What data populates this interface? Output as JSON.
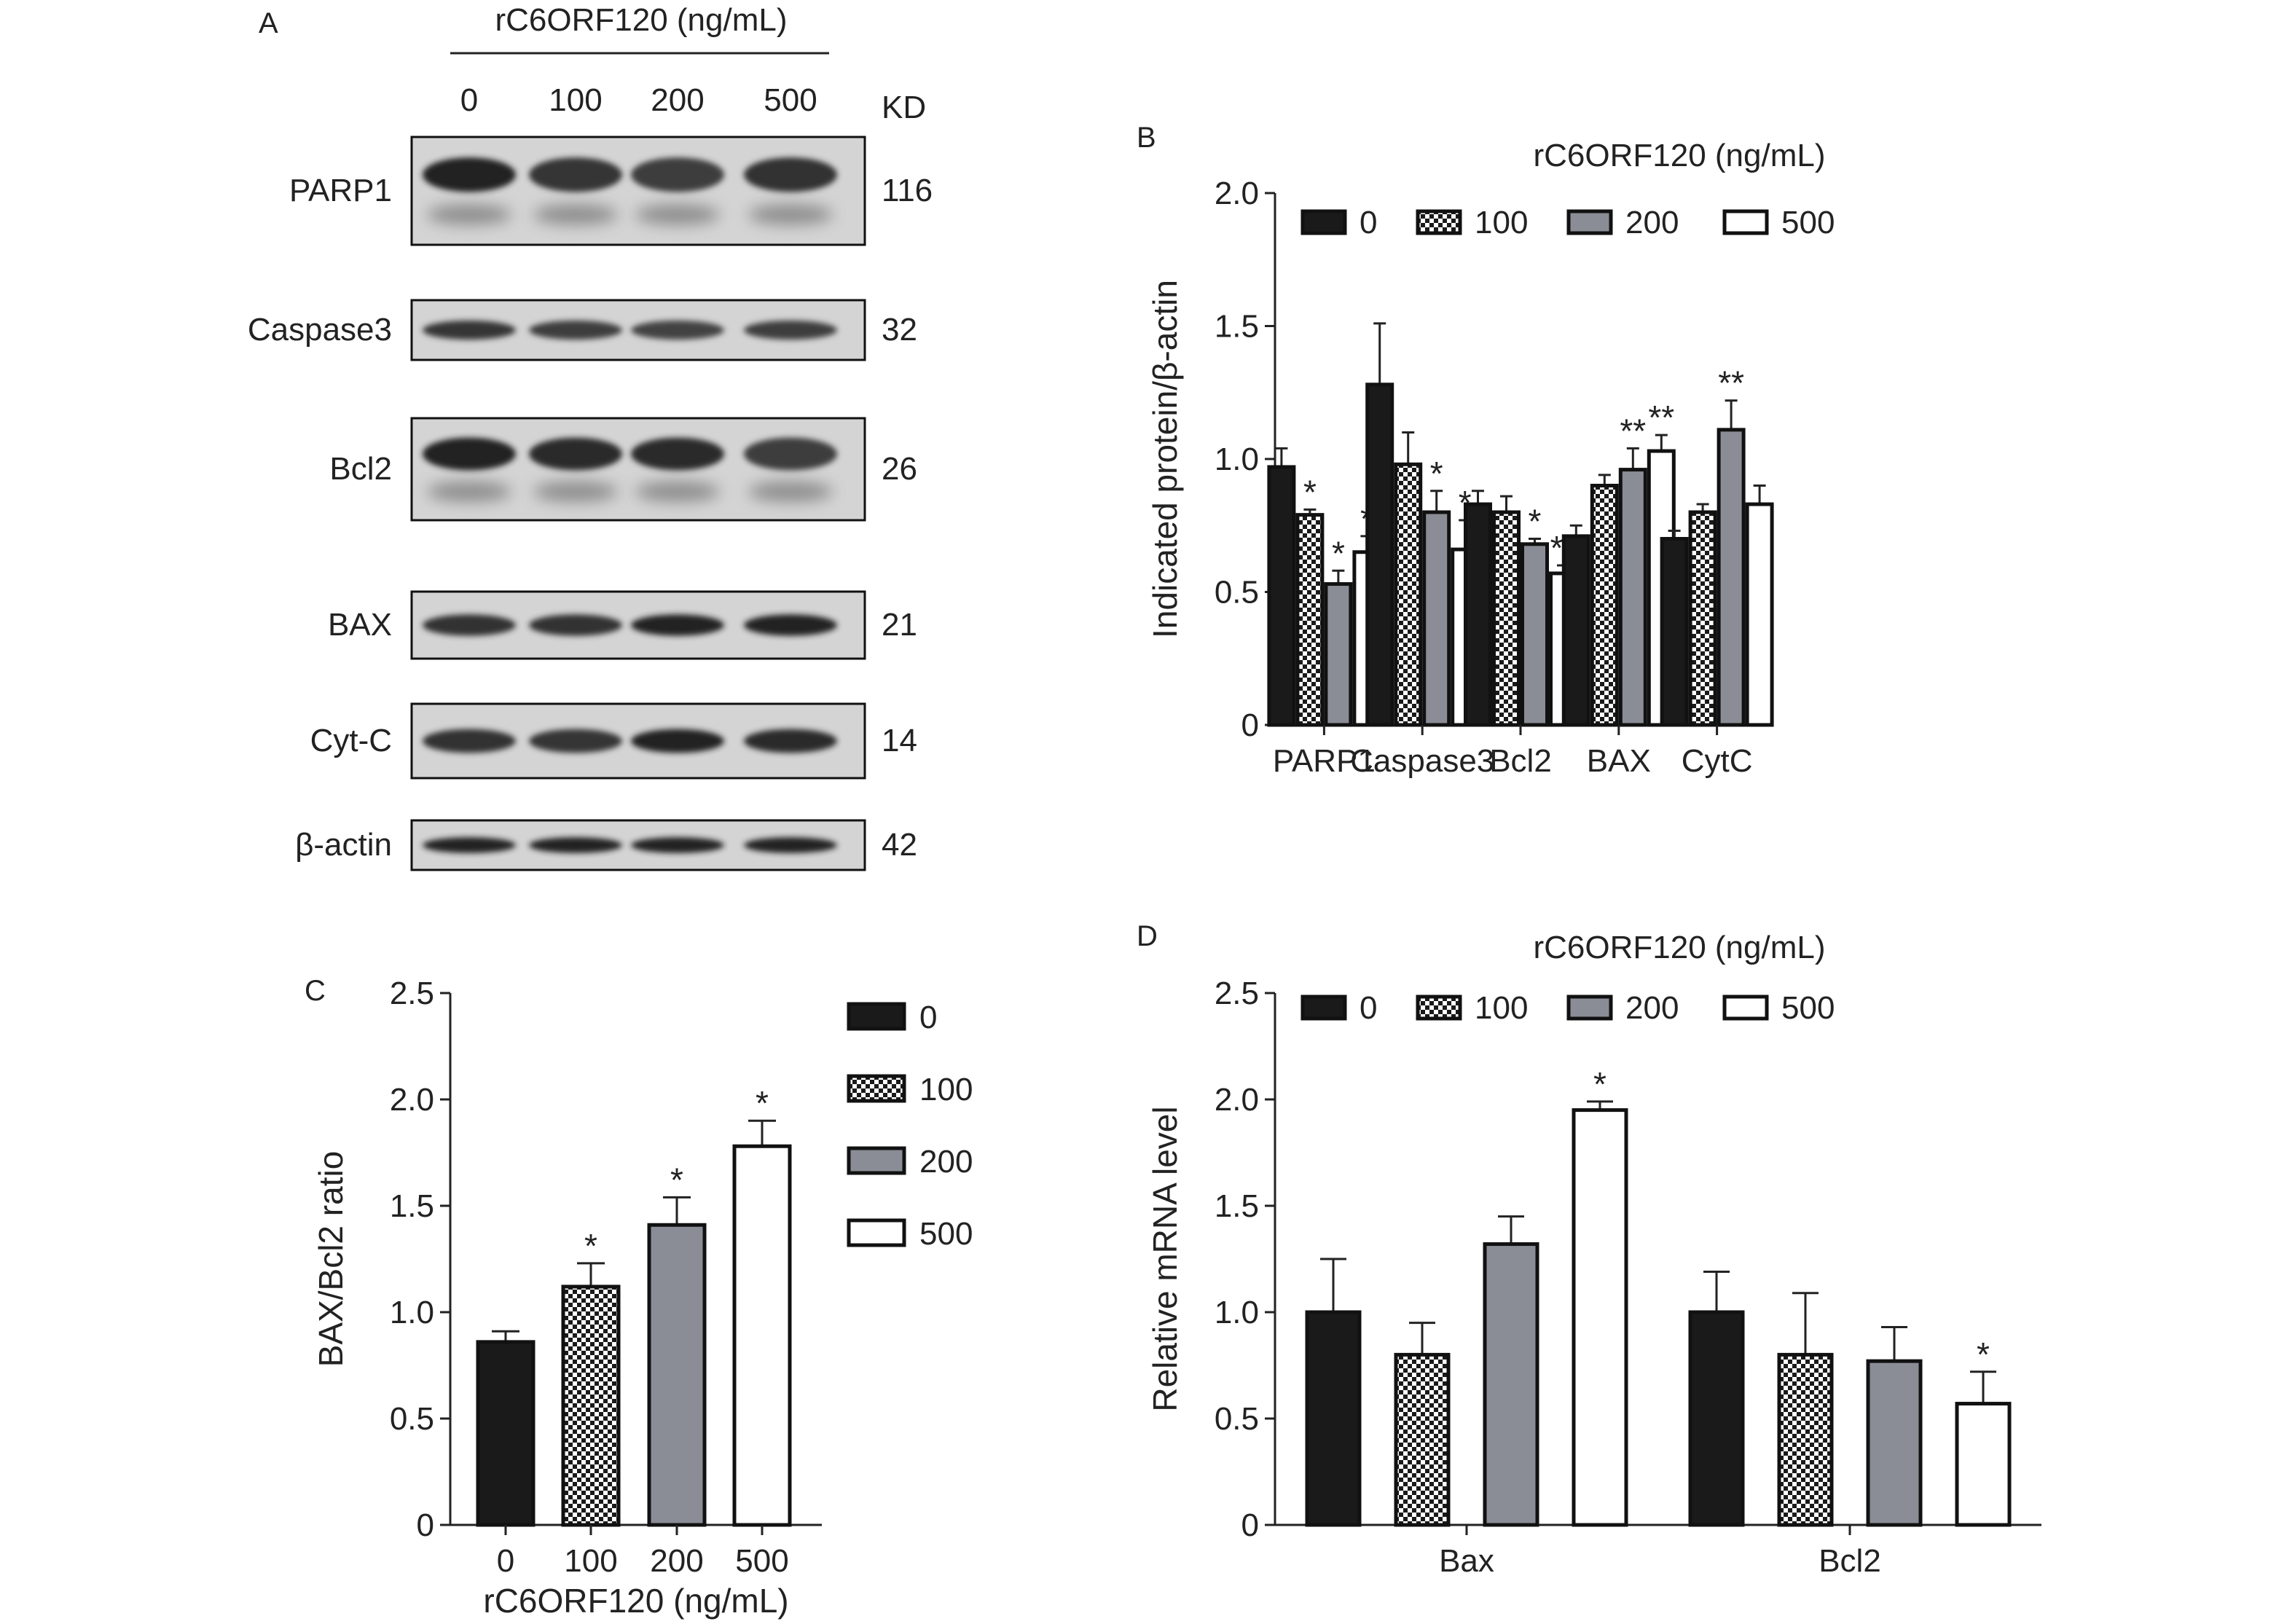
{
  "colors": {
    "black": "#1a1a1a",
    "gray": "#8a8d96",
    "white": "#ffffff",
    "axis": "#222222"
  },
  "panelA": {
    "letter": "A",
    "header": "rC6ORF120 (ng/mL)",
    "doses": [
      "0",
      "100",
      "200",
      "500"
    ],
    "kd_label": "KD",
    "blots": [
      {
        "name": "PARP1",
        "kd": "116"
      },
      {
        "name": "Caspase3",
        "kd": "32"
      },
      {
        "name": "Bcl2",
        "kd": "26"
      },
      {
        "name": "BAX",
        "kd": "21"
      },
      {
        "name": "Cyt-C",
        "kd": "14"
      },
      {
        "name": "β-actin",
        "kd": "42"
      }
    ]
  },
  "chart_data": [
    {
      "panel": "B",
      "type": "bar",
      "title": "rC6ORF120 (ng/mL)",
      "ylabel": "Indicated protein/β-actin",
      "xlabel": "",
      "ylim": [
        0,
        2.0
      ],
      "yticks": [
        "0",
        "0.5",
        "1.0",
        "1.5",
        "2.0"
      ],
      "categories": [
        "PARP1",
        "Caspase3",
        "Bcl2",
        "BAX",
        "CytC"
      ],
      "legend_position": "top",
      "series": [
        {
          "name": "0",
          "fill": "black",
          "values": [
            0.97,
            1.28,
            0.83,
            0.71,
            0.7
          ],
          "err": [
            0.07,
            0.23,
            0.05,
            0.04,
            0.03
          ],
          "sig": [
            "",
            "",
            "",
            "",
            ""
          ]
        },
        {
          "name": "100",
          "fill": "check",
          "values": [
            0.79,
            0.98,
            0.8,
            0.9,
            0.8
          ],
          "err": [
            0.02,
            0.12,
            0.06,
            0.04,
            0.03
          ],
          "sig": [
            "*",
            "",
            "",
            "",
            ""
          ]
        },
        {
          "name": "200",
          "fill": "gray",
          "values": [
            0.53,
            0.8,
            0.68,
            0.96,
            1.11
          ],
          "err": [
            0.05,
            0.08,
            0.02,
            0.08,
            0.11
          ],
          "sig": [
            "*",
            "*",
            "*",
            "**",
            "**"
          ]
        },
        {
          "name": "500",
          "fill": "white",
          "values": [
            0.65,
            0.66,
            0.57,
            1.03,
            0.83
          ],
          "err": [
            0.06,
            0.11,
            0.03,
            0.06,
            0.07
          ],
          "sig": [
            "*",
            "*",
            "**",
            "**",
            ""
          ]
        }
      ]
    },
    {
      "panel": "C",
      "type": "bar",
      "title": "",
      "ylabel": "BAX/Bcl2 ratio",
      "xlabel": "rC6ORF120 (ng/mL)",
      "ylim": [
        0,
        2.5
      ],
      "yticks": [
        "0",
        "0.5",
        "1.0",
        "1.5",
        "2.0",
        "2.5"
      ],
      "categories": [
        "0",
        "100",
        "200",
        "500"
      ],
      "legend_position": "right",
      "legend": [
        "0",
        "100",
        "200",
        "500"
      ],
      "fills": [
        "black",
        "check",
        "gray",
        "white"
      ],
      "values": [
        0.86,
        1.12,
        1.41,
        1.78
      ],
      "err": [
        0.05,
        0.11,
        0.13,
        0.12
      ],
      "sig": [
        "",
        "*",
        "*",
        "*"
      ]
    },
    {
      "panel": "D",
      "type": "bar",
      "title": "rC6ORF120 (ng/mL)",
      "ylabel": "Relative mRNA level",
      "xlabel": "",
      "ylim": [
        0,
        2.5
      ],
      "yticks": [
        "0",
        "0.5",
        "1.0",
        "1.5",
        "2.0",
        "2.5"
      ],
      "categories": [
        "Bax",
        "Bcl2"
      ],
      "legend_position": "top",
      "series": [
        {
          "name": "0",
          "fill": "black",
          "values": [
            1.0,
            1.0
          ],
          "err": [
            0.25,
            0.19
          ],
          "sig": [
            "",
            ""
          ]
        },
        {
          "name": "100",
          "fill": "check",
          "values": [
            0.8,
            0.8
          ],
          "err": [
            0.15,
            0.29
          ],
          "sig": [
            "",
            ""
          ]
        },
        {
          "name": "200",
          "fill": "gray",
          "values": [
            1.32,
            0.77
          ],
          "err": [
            0.13,
            0.16
          ],
          "sig": [
            "",
            ""
          ]
        },
        {
          "name": "500",
          "fill": "white",
          "values": [
            1.95,
            0.57
          ],
          "err": [
            0.04,
            0.15
          ],
          "sig": [
            "*",
            "*"
          ]
        }
      ]
    }
  ]
}
